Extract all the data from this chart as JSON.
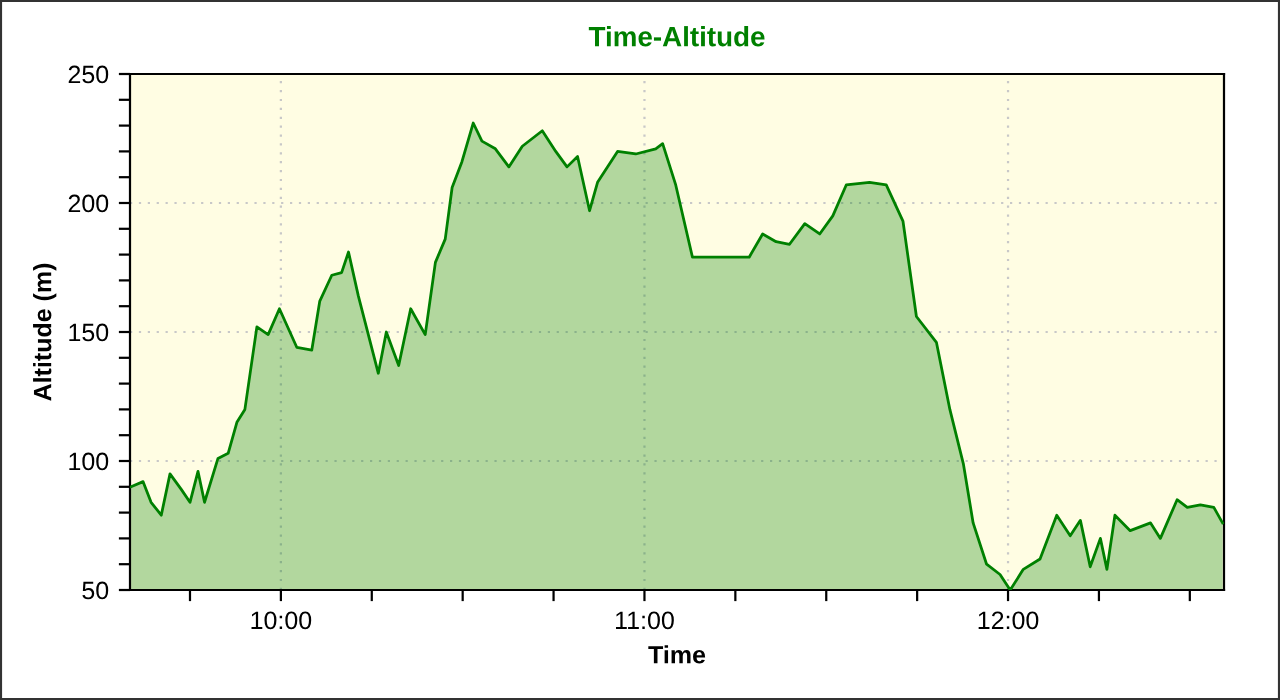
{
  "chart_data": {
    "type": "area",
    "title": "Time-Altitude",
    "xlabel": "Time",
    "ylabel": "Altitude (m)",
    "xlim": [
      9.585,
      12.594
    ],
    "ylim": [
      50,
      250
    ],
    "xticks": [
      {
        "value": 9.75,
        "label": null
      },
      {
        "value": 10,
        "label": "10:00"
      },
      {
        "value": 10.25,
        "label": null
      },
      {
        "value": 10.5,
        "label": null
      },
      {
        "value": 10.75,
        "label": null
      },
      {
        "value": 11,
        "label": "11:00"
      },
      {
        "value": 11.25,
        "label": null
      },
      {
        "value": 11.5,
        "label": null
      },
      {
        "value": 11.75,
        "label": null
      },
      {
        "value": 12,
        "label": "12:00"
      },
      {
        "value": 12.25,
        "label": null
      },
      {
        "value": 12.5,
        "label": null
      }
    ],
    "yticks": [
      50,
      {
        "value": 60,
        "label": null
      },
      {
        "value": 70,
        "label": null
      },
      {
        "value": 80,
        "label": null
      },
      {
        "value": 90,
        "label": null
      },
      100,
      {
        "value": 110,
        "label": null
      },
      {
        "value": 120,
        "label": null
      },
      {
        "value": 130,
        "label": null
      },
      {
        "value": 140,
        "label": null
      },
      150,
      {
        "value": 160,
        "label": null
      },
      {
        "value": 170,
        "label": null
      },
      {
        "value": 180,
        "label": null
      },
      {
        "value": 190,
        "label": null
      },
      200,
      {
        "value": 210,
        "label": null
      },
      {
        "value": 220,
        "label": null
      },
      {
        "value": 230,
        "label": null
      },
      {
        "value": 240,
        "label": null
      },
      250
    ],
    "grid": true,
    "series": [
      {
        "color": "#008000",
        "x": [
          9.588,
          9.621,
          9.643,
          9.671,
          9.695,
          9.726,
          9.75,
          9.772,
          9.79,
          9.827,
          9.855,
          9.879,
          9.901,
          9.934,
          9.965,
          9.996,
          10.044,
          10.085,
          10.107,
          10.14,
          10.167,
          10.186,
          10.213,
          10.268,
          10.29,
          10.324,
          10.357,
          10.397,
          10.425,
          10.452,
          10.471,
          10.498,
          10.529,
          10.553,
          10.59,
          10.627,
          10.664,
          10.719,
          10.756,
          10.787,
          10.816,
          10.849,
          10.871,
          10.926,
          10.976,
          11.031,
          11.05,
          11.086,
          11.132,
          11.288,
          11.325,
          11.362,
          11.399,
          11.441,
          11.482,
          11.518,
          11.555,
          11.619,
          11.665,
          11.711,
          11.748,
          11.803,
          11.84,
          11.877,
          11.904,
          11.941,
          11.978,
          12.006,
          12.042,
          12.088,
          12.134,
          12.171,
          12.199,
          12.226,
          12.254,
          12.272,
          12.294,
          12.336,
          12.392,
          12.419,
          12.465,
          12.493,
          12.529,
          12.566,
          12.59
        ],
        "values": [
          90,
          92,
          84,
          79,
          95,
          89,
          84,
          96,
          84,
          101,
          103,
          115,
          120,
          152,
          149,
          159,
          144,
          143,
          162,
          172,
          173,
          181,
          164,
          134,
          150,
          137,
          159,
          149,
          177,
          186,
          206,
          216,
          231,
          224,
          221,
          214,
          222,
          228,
          220,
          214,
          218,
          197,
          208,
          220,
          219,
          221,
          223,
          207,
          179,
          179,
          188,
          185,
          184,
          192,
          188,
          195,
          207,
          208,
          207,
          193,
          156,
          146,
          120,
          99,
          76,
          60,
          56,
          50,
          58,
          62,
          79,
          71,
          77,
          59,
          70,
          58,
          79,
          73,
          76,
          70,
          85,
          82,
          83,
          82,
          76
        ]
      }
    ]
  }
}
